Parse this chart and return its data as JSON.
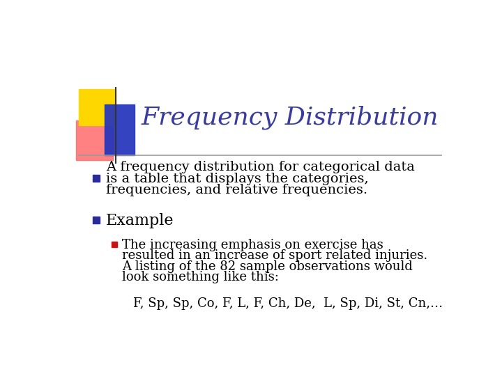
{
  "title": "Frequency Distribution",
  "title_color": "#3b3b9e",
  "background_color": "#f0f0f0",
  "bullet1_line1": "A frequency distribution for categorical data",
  "bullet1_line2": "is a table that displays the categories,",
  "bullet1_line3": "frequencies, and relative frequencies.",
  "bullet2_text": "Example",
  "sub_bullet_line1": "The increasing emphasis on exercise has",
  "sub_bullet_line2": "resulted in an increase of sport related injuries.",
  "sub_bullet_line3": "A listing of the 82 sample observations would",
  "sub_bullet_line4": "look something like this:",
  "data_line": "F, Sp, Sp, Co, F, L, F, Ch, De,  L, Sp, Di, St, Cn,…",
  "bullet_color": "#2a2a99",
  "sub_bullet_color": "#cc1111",
  "body_text_color": "#000000",
  "line_color": "#999999",
  "title_fontsize": 26,
  "body_fontsize": 14,
  "sub_fontsize": 13
}
